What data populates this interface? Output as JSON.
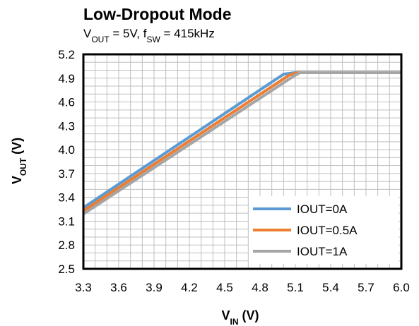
{
  "chart_data": {
    "type": "line",
    "title": "Low-Dropout Mode",
    "subtitle": {
      "parts": [
        {
          "text": "V",
          "sub": false
        },
        {
          "text": "OUT",
          "sub": true
        },
        {
          "text": " = 5V, f",
          "sub": false
        },
        {
          "text": "SW",
          "sub": true
        },
        {
          "text": " = 415kHz",
          "sub": false
        }
      ]
    },
    "xlabel": {
      "main": "V",
      "sub": "IN",
      "unit": " (V)"
    },
    "ylabel": {
      "main": "V",
      "sub": "OUT",
      "unit": " (V)"
    },
    "xlim": [
      3.3,
      6.0
    ],
    "ylim": [
      2.5,
      5.2
    ],
    "x_ticks": [
      "3.3",
      "3.6",
      "3.9",
      "4.2",
      "4.5",
      "4.8",
      "5.1",
      "5.4",
      "5.7",
      "6.0"
    ],
    "y_ticks": [
      "5.2",
      "4.9",
      "4.6",
      "4.3",
      "4.0",
      "3.7",
      "3.4",
      "3.1",
      "2.8",
      "2.5"
    ],
    "grid": true,
    "legend_position": "bottom-right",
    "series": [
      {
        "name": "IOUT=0A",
        "color": "#5B9BD5",
        "x": [
          3.3,
          5.0,
          5.1,
          6.0
        ],
        "y": [
          3.27,
          4.95,
          4.97,
          4.97
        ]
      },
      {
        "name": "IOUT=0.5A",
        "color": "#ED7D31",
        "x": [
          3.3,
          5.05,
          5.12,
          6.0
        ],
        "y": [
          3.23,
          4.94,
          4.97,
          4.97
        ]
      },
      {
        "name": "IOUT=1A",
        "color": "#A5A5A5",
        "x": [
          3.3,
          5.08,
          5.14,
          6.0
        ],
        "y": [
          3.19,
          4.92,
          4.97,
          4.97
        ]
      }
    ]
  }
}
